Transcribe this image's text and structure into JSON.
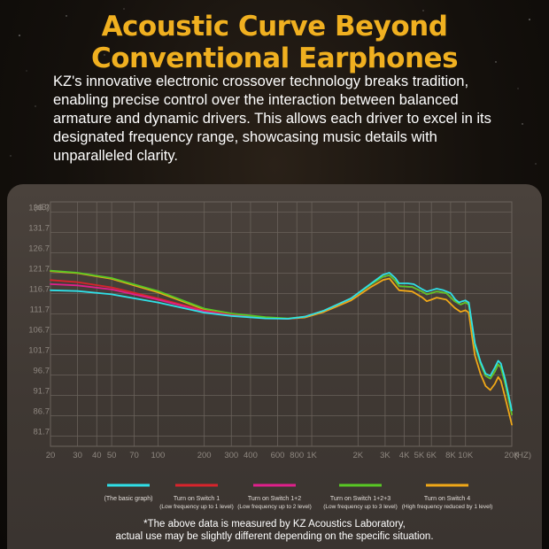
{
  "title_line1": "Acoustic Curve Beyond",
  "title_line2": "Conventional Earphones",
  "description": "KZ's innovative electronic crossover technology breaks tradition, enabling precise control over the interaction between balanced armature and dynamic drivers. This allows each driver to excel in its designated frequency range, showcasing music details with unparalleled clarity.",
  "footnote_line1": "*The above data is measured by KZ Acoustics Laboratory,",
  "footnote_line2": "actual use may be slightly different depending on the specific situation.",
  "chart_data": {
    "type": "line",
    "ylabel": "(dB)",
    "xlabel": "(HZ)",
    "x_scale": "log",
    "xlim": [
      20,
      20000
    ],
    "ylim": [
      81.7,
      136.7
    ],
    "x_ticks": [
      {
        "v": 20,
        "label": "20"
      },
      {
        "v": 30,
        "label": "30"
      },
      {
        "v": 40,
        "label": "40"
      },
      {
        "v": 50,
        "label": "50"
      },
      {
        "v": 70,
        "label": "70"
      },
      {
        "v": 100,
        "label": "100"
      },
      {
        "v": 200,
        "label": "200"
      },
      {
        "v": 300,
        "label": "300"
      },
      {
        "v": 400,
        "label": "400"
      },
      {
        "v": 600,
        "label": "600"
      },
      {
        "v": 800,
        "label": "800"
      },
      {
        "v": 1000,
        "label": "1K"
      },
      {
        "v": 2000,
        "label": "2K"
      },
      {
        "v": 3000,
        "label": "3K"
      },
      {
        "v": 4000,
        "label": "4K"
      },
      {
        "v": 5000,
        "label": "5K"
      },
      {
        "v": 6000,
        "label": "6K"
      },
      {
        "v": 8000,
        "label": "8K"
      },
      {
        "v": 10000,
        "label": "10K"
      },
      {
        "v": 20000,
        "label": "20K"
      }
    ],
    "y_ticks": [
      {
        "v": 136.7,
        "label": "136.7"
      },
      {
        "v": 131.7,
        "label": "131.7"
      },
      {
        "v": 126.7,
        "label": "126.7"
      },
      {
        "v": 121.7,
        "label": "121.7"
      },
      {
        "v": 116.7,
        "label": "116.7"
      },
      {
        "v": 111.7,
        "label": "111.7"
      },
      {
        "v": 106.7,
        "label": "106.7"
      },
      {
        "v": 101.7,
        "label": "101.7"
      },
      {
        "v": 96.7,
        "label": "96.7"
      },
      {
        "v": 91.7,
        "label": "91.7"
      },
      {
        "v": 86.7,
        "label": "86.7"
      },
      {
        "v": 81.7,
        "label": "81.7"
      }
    ],
    "grid": true,
    "series": [
      {
        "name": "(The basic graph)",
        "color": "#2fe0e8",
        "points": [
          [
            20,
            117.5
          ],
          [
            30,
            117.3
          ],
          [
            50,
            116.5
          ],
          [
            100,
            114.5
          ],
          [
            200,
            112
          ],
          [
            300,
            111.2
          ],
          [
            500,
            110.6
          ],
          [
            700,
            110.5
          ],
          [
            900,
            111
          ],
          [
            1200,
            112.5
          ],
          [
            1800,
            115.5
          ],
          [
            2400,
            119
          ],
          [
            2900,
            121.3
          ],
          [
            3200,
            121.8
          ],
          [
            3500,
            120.5
          ],
          [
            3700,
            119.2
          ],
          [
            4200,
            119.2
          ],
          [
            4600,
            119
          ],
          [
            5200,
            117.8
          ],
          [
            5600,
            117.2
          ],
          [
            6000,
            117.5
          ],
          [
            6500,
            117.9
          ],
          [
            7200,
            117.5
          ],
          [
            8000,
            116.8
          ],
          [
            8600,
            115.2
          ],
          [
            9100,
            114.5
          ],
          [
            9500,
            114.8
          ],
          [
            10000,
            115
          ],
          [
            10500,
            114.5
          ],
          [
            11000,
            109.5
          ],
          [
            11500,
            104.5
          ],
          [
            12500,
            100
          ],
          [
            13500,
            97
          ],
          [
            14500,
            96.5
          ],
          [
            15500,
            98.5
          ],
          [
            16300,
            100.2
          ],
          [
            17000,
            99.5
          ],
          [
            18000,
            96
          ],
          [
            19000,
            92
          ],
          [
            20000,
            88
          ]
        ]
      },
      {
        "name": "Turn on Switch 1",
        "sub": "(Low frequency up to 1 level)",
        "color": "#d8242c",
        "points": [
          [
            20,
            120
          ],
          [
            30,
            119.5
          ],
          [
            50,
            118.2
          ],
          [
            100,
            115.5
          ],
          [
            200,
            112.5
          ],
          [
            300,
            111.5
          ],
          [
            500,
            110.8
          ],
          [
            700,
            110.5
          ],
          [
            900,
            111
          ],
          [
            1200,
            112.5
          ],
          [
            1800,
            115.5
          ],
          [
            2400,
            118.8
          ],
          [
            2900,
            120.8
          ],
          [
            3200,
            121.2
          ],
          [
            3500,
            119.8
          ],
          [
            3700,
            118.5
          ],
          [
            4500,
            118.3
          ],
          [
            5200,
            117.2
          ],
          [
            5600,
            116.5
          ],
          [
            6000,
            116.8
          ],
          [
            6500,
            117.2
          ],
          [
            7500,
            116.8
          ],
          [
            8500,
            114.8
          ],
          [
            9300,
            114
          ],
          [
            10000,
            114.5
          ],
          [
            10500,
            114
          ],
          [
            11000,
            109
          ],
          [
            11500,
            104
          ],
          [
            12500,
            99.5
          ],
          [
            13500,
            96.5
          ],
          [
            14500,
            95.8
          ],
          [
            15500,
            97.5
          ],
          [
            16300,
            99.3
          ],
          [
            17000,
            98.5
          ],
          [
            18000,
            95
          ],
          [
            19000,
            91
          ],
          [
            20000,
            87
          ]
        ]
      },
      {
        "name": "Turn on Switch 1+2",
        "sub": "(Low frequency up to 2 level)",
        "color": "#e0208c",
        "points": [
          [
            20,
            119
          ],
          [
            30,
            118.7
          ],
          [
            50,
            117.7
          ],
          [
            100,
            115.2
          ],
          [
            200,
            112.3
          ],
          [
            300,
            111.3
          ],
          [
            500,
            110.7
          ],
          [
            700,
            110.5
          ],
          [
            900,
            111
          ],
          [
            1200,
            112.5
          ],
          [
            1800,
            115.5
          ],
          [
            2400,
            118.8
          ],
          [
            2900,
            120.8
          ],
          [
            3200,
            121.2
          ],
          [
            3500,
            119.8
          ],
          [
            3700,
            118.5
          ],
          [
            4500,
            118.3
          ],
          [
            5200,
            117.2
          ],
          [
            5600,
            116.5
          ],
          [
            6000,
            116.8
          ],
          [
            6500,
            117.2
          ],
          [
            7500,
            116.8
          ],
          [
            8500,
            114.8
          ],
          [
            9300,
            114
          ],
          [
            10000,
            114.5
          ],
          [
            10500,
            114
          ],
          [
            11000,
            109
          ],
          [
            11500,
            104
          ],
          [
            12500,
            99.5
          ],
          [
            13500,
            96.5
          ],
          [
            14500,
            95.8
          ],
          [
            15500,
            97.5
          ],
          [
            16300,
            99.3
          ],
          [
            17000,
            98.5
          ],
          [
            18000,
            95
          ],
          [
            19000,
            91
          ],
          [
            20000,
            87
          ]
        ]
      },
      {
        "name": "Turn on Switch 1+2+3",
        "sub": "(Low frequency up to 3 level)",
        "color": "#58c824",
        "points": [
          [
            20,
            122.3
          ],
          [
            30,
            121.8
          ],
          [
            50,
            120.5
          ],
          [
            100,
            117.3
          ],
          [
            200,
            113
          ],
          [
            300,
            111.8
          ],
          [
            500,
            110.9
          ],
          [
            700,
            110.6
          ],
          [
            900,
            111
          ],
          [
            1200,
            112.5
          ],
          [
            1800,
            115.5
          ],
          [
            2400,
            118.8
          ],
          [
            2900,
            120.8
          ],
          [
            3200,
            121.2
          ],
          [
            3500,
            119.8
          ],
          [
            3700,
            118.5
          ],
          [
            4500,
            118.3
          ],
          [
            5200,
            117.2
          ],
          [
            5600,
            116.5
          ],
          [
            6000,
            116.8
          ],
          [
            6500,
            117.2
          ],
          [
            7500,
            116.8
          ],
          [
            8500,
            114.8
          ],
          [
            9300,
            114
          ],
          [
            10000,
            114.5
          ],
          [
            10500,
            114
          ],
          [
            11000,
            109
          ],
          [
            11500,
            104
          ],
          [
            12500,
            99.5
          ],
          [
            13500,
            96.5
          ],
          [
            14500,
            95.8
          ],
          [
            15500,
            97.5
          ],
          [
            16300,
            99.3
          ],
          [
            17000,
            98.5
          ],
          [
            18000,
            95
          ],
          [
            19000,
            91
          ],
          [
            20000,
            87
          ]
        ]
      },
      {
        "name": "Turn on Switch 4",
        "sub": "(High frequency reduced by 1 level)",
        "color": "#f0a818",
        "points": [
          [
            20,
            122.2
          ],
          [
            30,
            121.7
          ],
          [
            50,
            120.3
          ],
          [
            100,
            117
          ],
          [
            200,
            112.8
          ],
          [
            300,
            111.6
          ],
          [
            500,
            110.8
          ],
          [
            700,
            110.5
          ],
          [
            900,
            110.8
          ],
          [
            1200,
            112.2
          ],
          [
            1800,
            115
          ],
          [
            2400,
            118.2
          ],
          [
            2900,
            120
          ],
          [
            3200,
            120.4
          ],
          [
            3500,
            118.6
          ],
          [
            3700,
            117.5
          ],
          [
            4500,
            117.2
          ],
          [
            5200,
            115.8
          ],
          [
            5600,
            114.8
          ],
          [
            6000,
            115.2
          ],
          [
            6500,
            115.7
          ],
          [
            7500,
            115.2
          ],
          [
            8500,
            113.2
          ],
          [
            9300,
            112.2
          ],
          [
            10000,
            112.6
          ],
          [
            10500,
            112
          ],
          [
            11000,
            106.5
          ],
          [
            11500,
            101.5
          ],
          [
            12500,
            97
          ],
          [
            13500,
            94
          ],
          [
            14500,
            93
          ],
          [
            15500,
            94.5
          ],
          [
            16300,
            96.2
          ],
          [
            17000,
            95.2
          ],
          [
            18000,
            91.5
          ],
          [
            19000,
            88
          ],
          [
            20000,
            84.5
          ]
        ]
      }
    ]
  }
}
